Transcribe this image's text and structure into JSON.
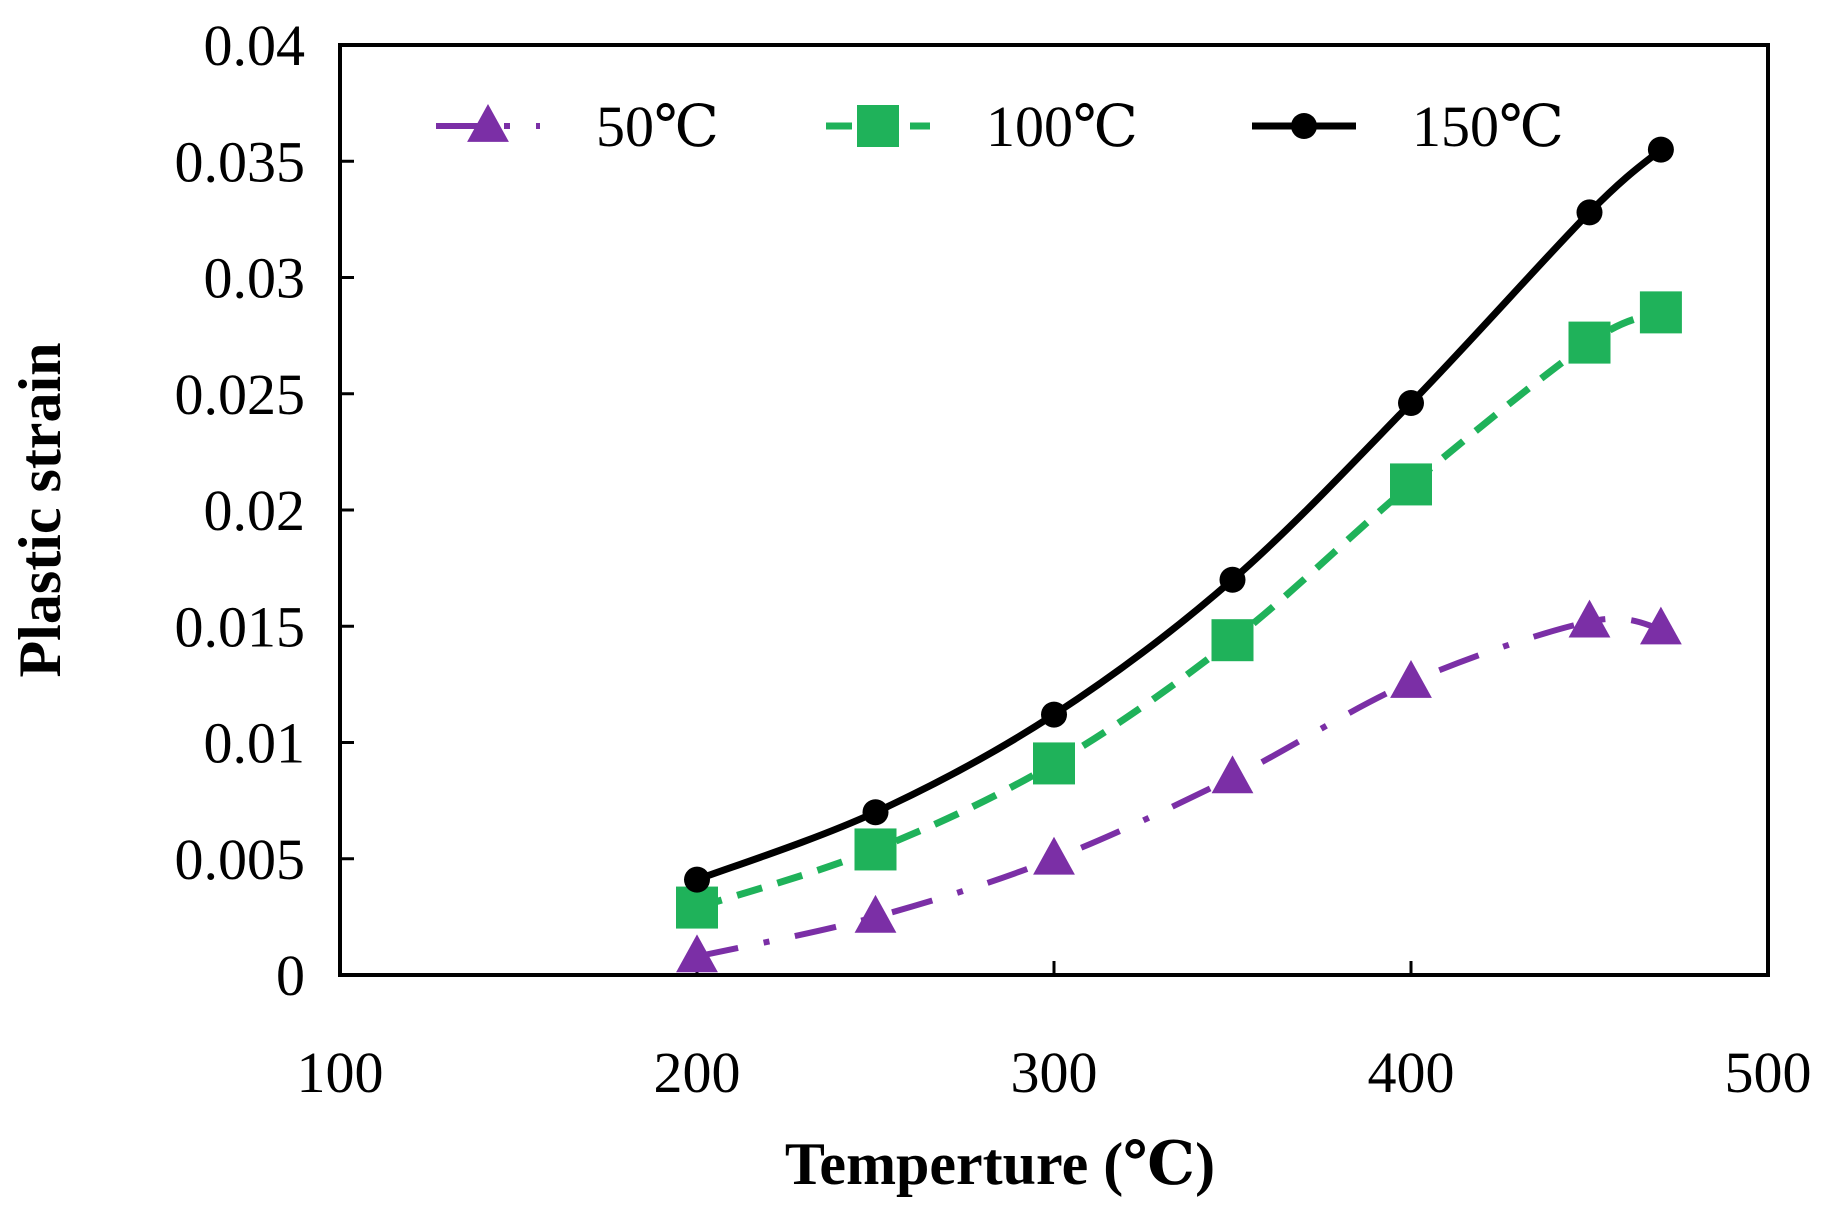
{
  "chart_data": {
    "type": "line",
    "title": "",
    "xlabel": "Temperture (℃)",
    "ylabel": "Plastic strain",
    "xlim": [
      100,
      500
    ],
    "ylim": [
      0,
      0.04
    ],
    "x_ticks": [
      100,
      200,
      300,
      400,
      500
    ],
    "y_ticks": [
      0,
      0.005,
      0.01,
      0.015,
      0.02,
      0.025,
      0.03,
      0.035,
      0.04
    ],
    "x_tick_labels": [
      "100",
      "200",
      "300",
      "400",
      "500"
    ],
    "y_tick_labels": [
      "0",
      "0.005",
      "0.01",
      "0.015",
      "0.02",
      "0.025",
      "0.03",
      "0.035",
      "0.04"
    ],
    "grid": false,
    "legend_position": "top",
    "x": [
      200,
      250,
      300,
      350,
      400,
      450,
      470
    ],
    "series": [
      {
        "name": "50℃",
        "values": [
          0.0008,
          0.0025,
          0.005,
          0.0085,
          0.0126,
          0.0152,
          0.0149
        ],
        "color": "#7b2fa6",
        "line_style": "dashdot",
        "marker": "triangle"
      },
      {
        "name": "100℃",
        "values": [
          0.0029,
          0.0054,
          0.0091,
          0.0144,
          0.0211,
          0.0272,
          0.0285
        ],
        "color": "#1fb25a",
        "line_style": "dashed",
        "marker": "square"
      },
      {
        "name": "150℃",
        "values": [
          0.0041,
          0.007,
          0.0112,
          0.017,
          0.0246,
          0.0328,
          0.0355
        ],
        "color": "#000000",
        "line_style": "solid",
        "marker": "circle"
      }
    ]
  }
}
